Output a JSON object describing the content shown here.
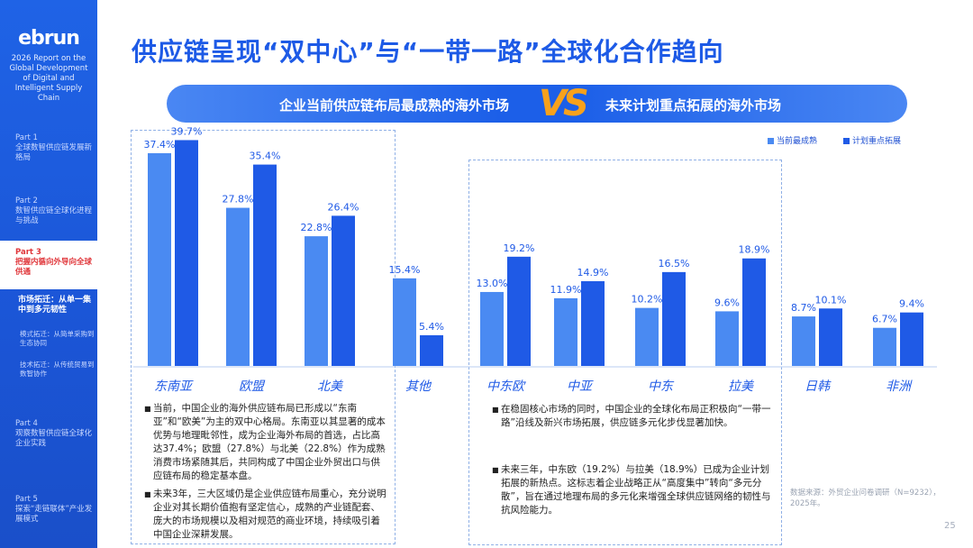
{
  "sidebar": {
    "logo": "ebrun",
    "report_title": "2026 Report on the Global Development of Digital and Intelligent Supply Chain",
    "parts": [
      {
        "part": "Part 1",
        "title": "全球数智供应链发展新格局"
      },
      {
        "part": "Part 2",
        "title": "数智供应链全球化进程与挑战"
      },
      {
        "part": "Part 3",
        "title": "把握内循向外导向全球供通"
      },
      {
        "part": "Part 4",
        "title": "观察数智供应链全球化企业实践"
      },
      {
        "part": "Part 5",
        "title": "探索“走链联体”产业发展模式"
      }
    ],
    "sub_item": "市场拓迁：从单一集中到多元韧性",
    "sub_sub_items": [
      "模式拓迁：从简单采购到生态协同",
      "技术拓迁：从传统贸易到数智协作"
    ]
  },
  "title": "供应链呈现“双中心”与“一带一路”全球化合作趋向",
  "banner": {
    "left": "企业当前供应链布局最成熟的海外市场",
    "vs": "VS",
    "right": "未来计划重点拓展的海外市场"
  },
  "colors": {
    "current": "#4a8af2",
    "planned": "#1f5ae6",
    "accent": "#1d5ae6",
    "vs": "#f7a11c"
  },
  "chart_data": {
    "type": "bar",
    "categories": [
      "东南亚",
      "欧盟",
      "北美",
      "其他",
      "中东欧",
      "中亚",
      "中东",
      "拉美",
      "日韩",
      "非洲"
    ],
    "series": [
      {
        "name": "当前最成熟",
        "values": [
          37.4,
          27.8,
          22.8,
          15.4,
          13.0,
          11.9,
          10.2,
          9.6,
          8.7,
          6.7
        ]
      },
      {
        "name": "计划重点拓展",
        "values": [
          39.7,
          35.4,
          26.4,
          5.4,
          19.2,
          14.9,
          16.5,
          18.9,
          10.1,
          9.4
        ]
      }
    ],
    "ylim": [
      0,
      45
    ],
    "legend_position": "top-right",
    "grid": false
  },
  "notes_left": [
    "当前，中国企业的海外供应链布局已形成以“东南亚”和“欧美”为主的双中心格局。东南亚以其显著的成本优势与地理毗邻性，成为企业海外布局的首选，占比高达37.4%；欧盟（27.8%）与北美（22.8%）作为成熟消费市场紧随其后，共同构成了中国企业外贸出口与供应链布局的稳定基本盘。",
    "未来3年，三大区域仍是企业供应链布局重心，充分说明企业对其长期价值抱有坚定信心，成熟的产业链配套、庞大的市场规模以及相对规范的商业环境，持续吸引着中国企业深耕发展。"
  ],
  "notes_right": [
    "在稳固核心市场的同时，中国企业的全球化布局正积极向“一带一路”沿线及新兴市场拓展，供应链多元化步伐显著加快。",
    "未来三年，中东欧（19.2%）与拉美（18.9%）已成为企业计划拓展的新热点。这标志着企业战略正从“高度集中”转向“多元分散”，旨在通过地理布局的多元化来增强全球供应链网络的韧性与抗风险能力。"
  ],
  "source": "数据来源：外贸企业问卷调研（N=9232），2025年。",
  "page_number": "25"
}
